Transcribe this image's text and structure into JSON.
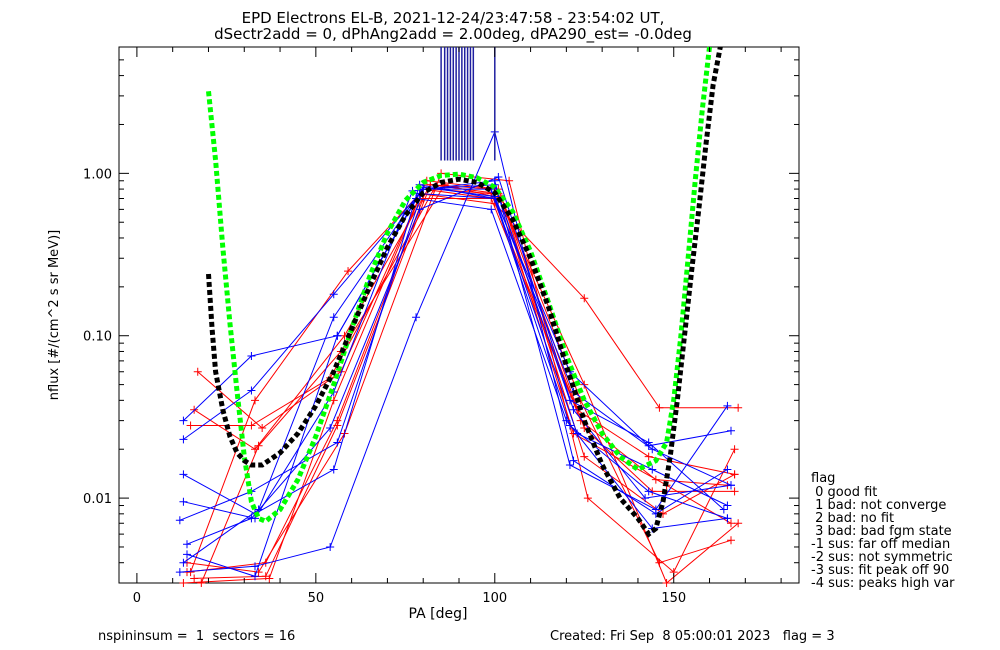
{
  "chart_data": {
    "type": "line",
    "title": "EPD Electrons EL-B, 2021-12-24/23:47:58 - 23:54:02 UT,",
    "subtitle": "dSectr2add = 0, dPhAng2add = 2.00deg, dPA290_est=  -0.0deg",
    "xlabel": "PA [deg]",
    "ylabel": "nflux [#/(cm^2 s sr MeV)]",
    "x_ticks": [
      "0",
      "50",
      "100",
      "150"
    ],
    "y_ticks": [
      "0.01",
      "0.10",
      "1.00"
    ],
    "xlim": [
      -5,
      185
    ],
    "ylim": [
      0.003,
      6
    ],
    "y_scale": "log",
    "grid": false,
    "legend": {
      "title": "flag",
      "placement": "right",
      "entries": [
        " 0 good fit",
        " 1 bad: not converge",
        " 2 bad: no fit",
        " 3 bad: bad fgm state",
        "-1 sus: far off median",
        "-2 sus: not symmetric",
        "-3 sus: fit peak off 90",
        "-4 sus: peaks high var"
      ]
    },
    "series": [
      {
        "color": "#ff0000",
        "x": [
          16,
          33,
          58,
          82,
          100,
          125,
          148,
          168
        ],
        "y": [
          0.035,
          0.02,
          0.1,
          0.85,
          0.8,
          0.05,
          0.003,
          0.007
        ]
      },
      {
        "color": "#ff0000",
        "x": [
          14,
          36,
          56,
          80,
          102,
          124,
          146,
          166
        ],
        "y": [
          0.0035,
          0.004,
          0.03,
          0.7,
          0.7,
          0.04,
          0.004,
          0.0055
        ]
      },
      {
        "color": "#ff0000",
        "x": [
          15,
          32,
          54,
          83,
          99,
          123,
          143,
          167
        ],
        "y": [
          0.028,
          0.028,
          0.055,
          0.8,
          0.75,
          0.035,
          0.018,
          0.014
        ]
      },
      {
        "color": "#ff0000",
        "x": [
          17,
          35,
          57,
          81,
          101,
          125,
          144,
          167
        ],
        "y": [
          0.06,
          0.027,
          0.06,
          0.9,
          0.8,
          0.027,
          0.011,
          0.011
        ]
      },
      {
        "color": "#ff0000",
        "x": [
          14,
          34,
          58,
          85,
          104,
          126,
          150,
          167
        ],
        "y": [
          0.004,
          0.0035,
          0.025,
          1.0,
          0.9,
          0.01,
          0.0035,
          0.02
        ]
      },
      {
        "color": "#ff0000",
        "x": [
          15,
          33,
          59,
          79,
          100,
          125,
          146,
          168
        ],
        "y": [
          0.0035,
          0.04,
          0.25,
          0.75,
          0.65,
          0.17,
          0.036,
          0.036
        ]
      },
      {
        "color": "#ff0000",
        "x": [
          16,
          36,
          56,
          82,
          101,
          122,
          148,
          166
        ],
        "y": [
          0.0032,
          0.0033,
          0.028,
          0.85,
          0.75,
          0.025,
          0.012,
          0.007
        ]
      },
      {
        "color": "#ff0000",
        "x": [
          13,
          37,
          55,
          80,
          99,
          124,
          145,
          165
        ],
        "y": [
          0.003,
          0.0032,
          0.04,
          0.8,
          0.7,
          0.03,
          0.013,
          0.012
        ]
      },
      {
        "color": "#ff0000",
        "x": [
          18,
          34,
          57,
          86,
          102,
          125,
          147,
          167
        ],
        "y": [
          0.003,
          0.021,
          0.08,
          0.85,
          0.7,
          0.018,
          0.008,
          0.014
        ]
      },
      {
        "color": "#0000ff",
        "x": [
          13,
          33,
          55,
          77,
          100,
          121,
          145,
          165
        ],
        "y": [
          0.0095,
          0.0075,
          0.045,
          0.78,
          0.9,
          0.016,
          0.0085,
          0.037
        ]
      },
      {
        "color": "#0000ff",
        "x": [
          13,
          32,
          56,
          79,
          100,
          121,
          143,
          166
        ],
        "y": [
          0.03,
          0.075,
          0.1,
          0.75,
          0.7,
          0.06,
          0.021,
          0.026
        ]
      },
      {
        "color": "#0000ff",
        "x": [
          12,
          33,
          54,
          78,
          100,
          122,
          145,
          165
        ],
        "y": [
          0.0035,
          0.0038,
          0.005,
          0.13,
          1.8,
          0.017,
          0.008,
          0.015
        ]
      },
      {
        "color": "#0000ff",
        "x": [
          13,
          32,
          55,
          80,
          100,
          121,
          143,
          164
        ],
        "y": [
          0.023,
          0.046,
          0.18,
          0.8,
          0.85,
          0.04,
          0.022,
          0.0085
        ]
      },
      {
        "color": "#0000ff",
        "x": [
          14,
          33,
          56,
          78,
          99,
          120,
          144,
          165
        ],
        "y": [
          0.0045,
          0.0033,
          0.1,
          0.7,
          0.6,
          0.03,
          0.0065,
          0.0075
        ]
      },
      {
        "color": "#0000ff",
        "x": [
          14,
          32,
          54,
          79,
          101,
          122,
          142,
          166
        ],
        "y": [
          0.0052,
          0.0075,
          0.027,
          0.6,
          0.95,
          0.035,
          0.01,
          0.012
        ]
      },
      {
        "color": "#0000ff",
        "x": [
          13,
          33,
          55,
          79,
          100,
          123,
          144,
          165
        ],
        "y": [
          0.014,
          0.008,
          0.015,
          0.85,
          0.7,
          0.025,
          0.015,
          0.009
        ]
      },
      {
        "color": "#0000ff",
        "x": [
          12,
          32,
          56,
          80,
          99,
          121,
          143,
          165
        ],
        "y": [
          0.0073,
          0.011,
          0.022,
          0.8,
          0.8,
          0.028,
          0.011,
          0.0075
        ]
      },
      {
        "color": "#0000ff",
        "x": [
          13,
          34,
          55,
          80,
          100,
          122,
          144,
          166
        ],
        "y": [
          0.004,
          0.0085,
          0.13,
          0.82,
          0.72,
          0.045,
          0.02,
          0.012
        ]
      }
    ],
    "fits": [
      {
        "color": "#00ff00",
        "style": "dashed",
        "x": [
          20,
          22,
          24,
          26,
          28,
          30,
          32,
          34,
          36,
          40,
          45,
          50,
          55,
          60,
          65,
          70,
          75,
          80,
          85,
          90,
          95,
          100,
          105,
          110,
          115,
          120,
          125,
          130,
          135,
          140,
          145,
          148,
          150,
          152,
          154,
          156,
          158,
          160
        ],
        "y": [
          3.2,
          1.2,
          0.35,
          0.12,
          0.045,
          0.018,
          0.0095,
          0.0075,
          0.0072,
          0.0085,
          0.013,
          0.024,
          0.05,
          0.11,
          0.23,
          0.43,
          0.68,
          0.88,
          0.97,
          0.99,
          0.94,
          0.82,
          0.58,
          0.33,
          0.16,
          0.075,
          0.04,
          0.025,
          0.018,
          0.015,
          0.017,
          0.022,
          0.04,
          0.1,
          0.3,
          0.9,
          2.5,
          6
        ]
      },
      {
        "color": "#000000",
        "style": "dashed",
        "x": [
          20,
          21,
          22,
          24,
          26,
          28,
          30,
          32,
          35,
          40,
          45,
          50,
          55,
          60,
          65,
          70,
          75,
          80,
          85,
          90,
          95,
          100,
          105,
          110,
          115,
          120,
          125,
          130,
          135,
          140,
          143,
          145,
          147,
          149,
          151,
          153,
          155,
          157,
          159,
          161,
          163
        ],
        "y": [
          0.24,
          0.11,
          0.06,
          0.035,
          0.024,
          0.019,
          0.017,
          0.016,
          0.016,
          0.019,
          0.025,
          0.037,
          0.06,
          0.11,
          0.2,
          0.35,
          0.55,
          0.76,
          0.88,
          0.92,
          0.88,
          0.76,
          0.52,
          0.3,
          0.15,
          0.065,
          0.03,
          0.016,
          0.01,
          0.0075,
          0.006,
          0.0065,
          0.0095,
          0.018,
          0.04,
          0.1,
          0.25,
          0.6,
          1.5,
          3.5,
          6
        ]
      }
    ],
    "blue_ticks_x": [
      85,
      86,
      86.8,
      87.6,
      88.4,
      89.2,
      90,
      90.8,
      91.6,
      92.4,
      93.2,
      94,
      100
    ],
    "footer_left": "nspininsum =  1  sectors = 16",
    "footer_right": "Created: Fri Sep  8 05:00:01 2023   flag = 3"
  }
}
